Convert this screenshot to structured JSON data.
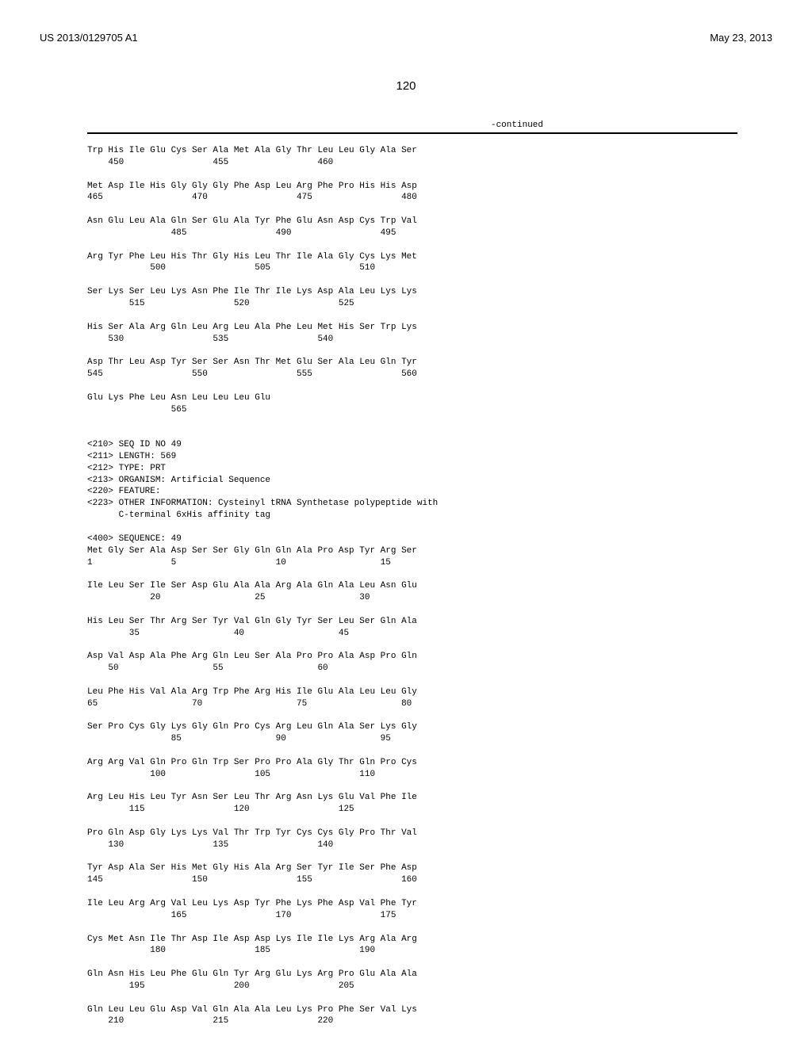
{
  "header": {
    "publication_number": "US 2013/0129705 A1",
    "publication_date": "May 23, 2013"
  },
  "page_number": "120",
  "continued_label": "-continued",
  "seq_header": {
    "seq_id": "<210> SEQ ID NO 49",
    "length": "<211> LENGTH: 569",
    "type": "<212> TYPE: PRT",
    "organism": "<213> ORGANISM: Artificial Sequence",
    "feature": "<220> FEATURE:",
    "other_info_1": "<223> OTHER INFORMATION: Cysteinyl tRNA Synthetase polypeptide with",
    "other_info_2": "      C-terminal 6xHis affinity tag",
    "sequence_label": "<400> SEQUENCE: 49"
  },
  "block1": [
    {
      "aa": "Trp His Ile Glu Cys Ser Ala Met Ala Gly Thr Leu Leu Gly Ala Ser",
      "num": "    450                 455                 460"
    },
    {
      "aa": "Met Asp Ile His Gly Gly Gly Phe Asp Leu Arg Phe Pro His His Asp",
      "num": "465                 470                 475                 480"
    },
    {
      "aa": "Asn Glu Leu Ala Gln Ser Glu Ala Tyr Phe Glu Asn Asp Cys Trp Val",
      "num": "                485                 490                 495"
    },
    {
      "aa": "Arg Tyr Phe Leu His Thr Gly His Leu Thr Ile Ala Gly Cys Lys Met",
      "num": "            500                 505                 510"
    },
    {
      "aa": "Ser Lys Ser Leu Lys Asn Phe Ile Thr Ile Lys Asp Ala Leu Lys Lys",
      "num": "        515                 520                 525"
    },
    {
      "aa": "His Ser Ala Arg Gln Leu Arg Leu Ala Phe Leu Met His Ser Trp Lys",
      "num": "    530                 535                 540"
    },
    {
      "aa": "Asp Thr Leu Asp Tyr Ser Ser Asn Thr Met Glu Ser Ala Leu Gln Tyr",
      "num": "545                 550                 555                 560"
    },
    {
      "aa": "Glu Lys Phe Leu Asn Leu Leu Leu Glu",
      "num": "                565"
    }
  ],
  "block2": [
    {
      "aa": "Met Gly Ser Ala Asp Ser Ser Gly Gln Gln Ala Pro Asp Tyr Arg Ser",
      "num": "1               5                   10                  15"
    },
    {
      "aa": "Ile Leu Ser Ile Ser Asp Glu Ala Ala Arg Ala Gln Ala Leu Asn Glu",
      "num": "            20                  25                  30"
    },
    {
      "aa": "His Leu Ser Thr Arg Ser Tyr Val Gln Gly Tyr Ser Leu Ser Gln Ala",
      "num": "        35                  40                  45"
    },
    {
      "aa": "Asp Val Asp Ala Phe Arg Gln Leu Ser Ala Pro Pro Ala Asp Pro Gln",
      "num": "    50                  55                  60"
    },
    {
      "aa": "Leu Phe His Val Ala Arg Trp Phe Arg His Ile Glu Ala Leu Leu Gly",
      "num": "65                  70                  75                  80"
    },
    {
      "aa": "Ser Pro Cys Gly Lys Gly Gln Pro Cys Arg Leu Gln Ala Ser Lys Gly",
      "num": "                85                  90                  95"
    },
    {
      "aa": "Arg Arg Val Gln Pro Gln Trp Ser Pro Pro Ala Gly Thr Gln Pro Cys",
      "num": "            100                 105                 110"
    },
    {
      "aa": "Arg Leu His Leu Tyr Asn Ser Leu Thr Arg Asn Lys Glu Val Phe Ile",
      "num": "        115                 120                 125"
    },
    {
      "aa": "Pro Gln Asp Gly Lys Lys Val Thr Trp Tyr Cys Cys Gly Pro Thr Val",
      "num": "    130                 135                 140"
    },
    {
      "aa": "Tyr Asp Ala Ser His Met Gly His Ala Arg Ser Tyr Ile Ser Phe Asp",
      "num": "145                 150                 155                 160"
    },
    {
      "aa": "Ile Leu Arg Arg Val Leu Lys Asp Tyr Phe Lys Phe Asp Val Phe Tyr",
      "num": "                165                 170                 175"
    },
    {
      "aa": "Cys Met Asn Ile Thr Asp Ile Asp Asp Lys Ile Ile Lys Arg Ala Arg",
      "num": "            180                 185                 190"
    },
    {
      "aa": "Gln Asn His Leu Phe Glu Gln Tyr Arg Glu Lys Arg Pro Glu Ala Ala",
      "num": "        195                 200                 205"
    },
    {
      "aa": "Gln Leu Leu Glu Asp Val Gln Ala Ala Leu Lys Pro Phe Ser Val Lys",
      "num": "    210                 215                 220"
    }
  ]
}
